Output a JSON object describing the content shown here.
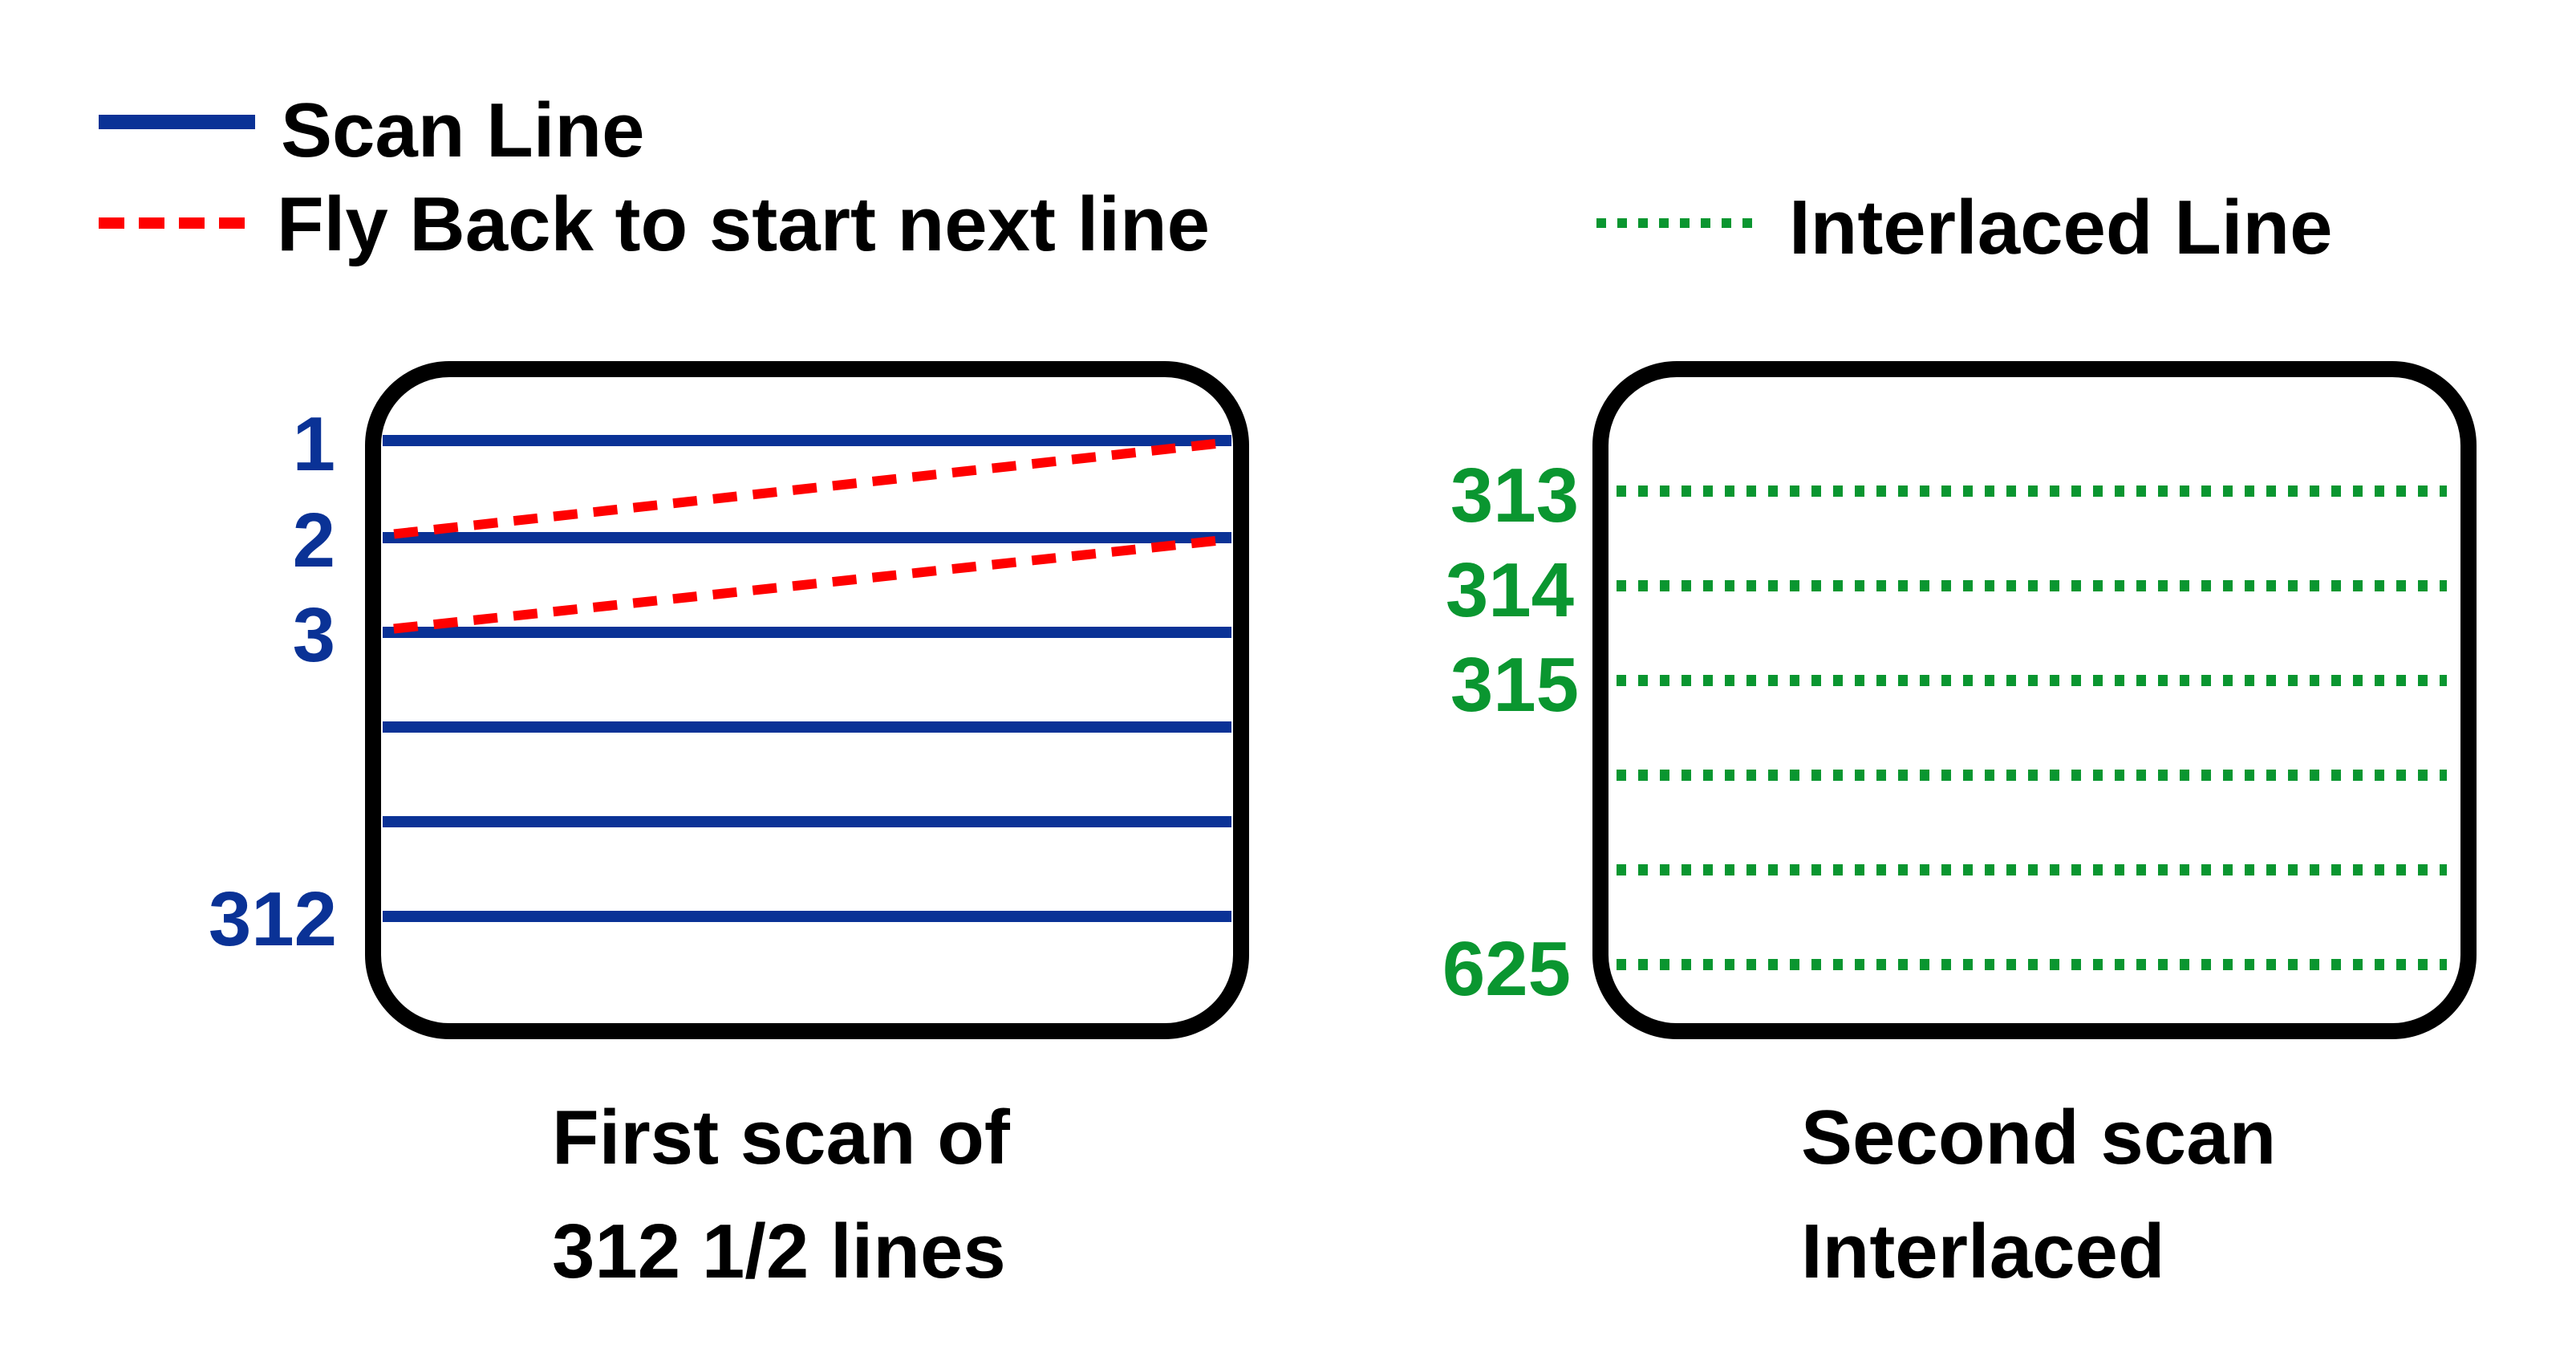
{
  "legend": {
    "scan_line": {
      "label": "Scan Line",
      "color": "#0a3296",
      "style": "solid"
    },
    "fly_back": {
      "label": "Fly Back to start next line",
      "color": "#ff0000",
      "style": "dashed"
    },
    "interlaced": {
      "label": "Interlaced Line",
      "color": "#0a9630",
      "style": "dotted"
    }
  },
  "first_scan": {
    "line_labels": [
      "1",
      "2",
      "3",
      "",
      "",
      "312"
    ],
    "caption_line1": "First scan of",
    "caption_line2": "312 1/2 lines"
  },
  "second_scan": {
    "line_labels": [
      "313",
      "314",
      "315",
      "",
      "",
      "625"
    ],
    "caption_line1": "Second scan",
    "caption_line2": "Interlaced"
  },
  "colors": {
    "frame": "#000000",
    "text": "#000000",
    "scan_blue": "#0a3296",
    "flyback_red": "#ff0000",
    "interlace_green": "#0a9630"
  }
}
